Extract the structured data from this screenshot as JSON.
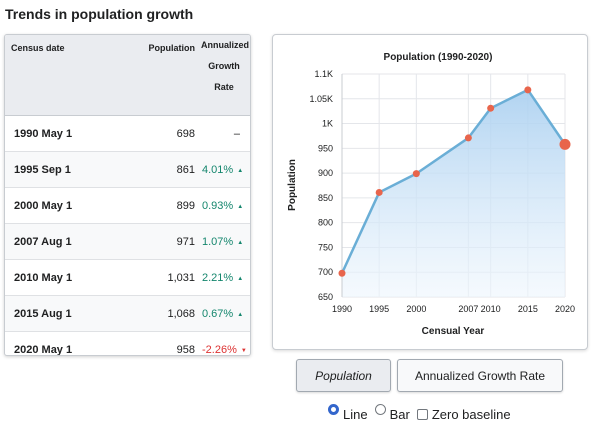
{
  "page": {
    "title": "Trends in population growth"
  },
  "table": {
    "headers": {
      "date": "Census date",
      "population": "Population",
      "rate_lines": [
        "Annualized",
        "Growth",
        "Rate"
      ]
    },
    "rows": [
      {
        "date": "1990 May 1",
        "population": "698",
        "rate": "–",
        "trend": "none"
      },
      {
        "date": "1995 Sep 1",
        "population": "861",
        "rate": "4.01%",
        "trend": "up"
      },
      {
        "date": "2000 May 1",
        "population": "899",
        "rate": "0.93%",
        "trend": "up"
      },
      {
        "date": "2007 Aug 1",
        "population": "971",
        "rate": "1.07%",
        "trend": "up"
      },
      {
        "date": "2010 May 1",
        "population": "1,031",
        "rate": "2.21%",
        "trend": "up"
      },
      {
        "date": "2015 Aug 1",
        "population": "1,068",
        "rate": "0.67%",
        "trend": "up"
      },
      {
        "date": "2020 May 1",
        "population": "958",
        "rate": "-2.26%",
        "trend": "down"
      }
    ],
    "up_arrow": "▲",
    "down_arrow": "▼"
  },
  "chart_data": {
    "type": "area",
    "title": "Population (1990-2020)",
    "xlabel": "Censual Year",
    "ylabel": "Population",
    "x": [
      1990,
      1995,
      2000,
      2007,
      2010,
      2015,
      2020
    ],
    "series": [
      {
        "values": [
          698,
          861,
          899,
          971,
          1031,
          1068,
          958
        ]
      }
    ],
    "xlim": [
      1990,
      2020
    ],
    "ylim": [
      650,
      1100
    ],
    "x_ticks": [
      1990,
      1995,
      2000,
      2007,
      2010,
      2015,
      2020
    ],
    "y_ticks": [
      650,
      700,
      750,
      800,
      850,
      900,
      950,
      1000,
      1050,
      1100
    ],
    "y_tick_labels": [
      "650",
      "700",
      "750",
      "800",
      "850",
      "900",
      "950",
      "1K",
      "1.05K",
      "1.1K"
    ],
    "grid": true,
    "legend": "none",
    "colors": {
      "line": "#6aaed6",
      "fill_top": "#a9cff0",
      "fill_bottom": "#eef6fd",
      "point": "#e8654c",
      "grid": "#e4e6ea"
    },
    "highlighted_point_index": 6
  },
  "controls": {
    "population_button": "Population",
    "growth_button": "Annualized Growth Rate",
    "radio_line": "Line",
    "radio_bar": "Bar",
    "checkbox_zero": "Zero baseline",
    "selected_chart": "Line",
    "zero_baseline": false
  }
}
